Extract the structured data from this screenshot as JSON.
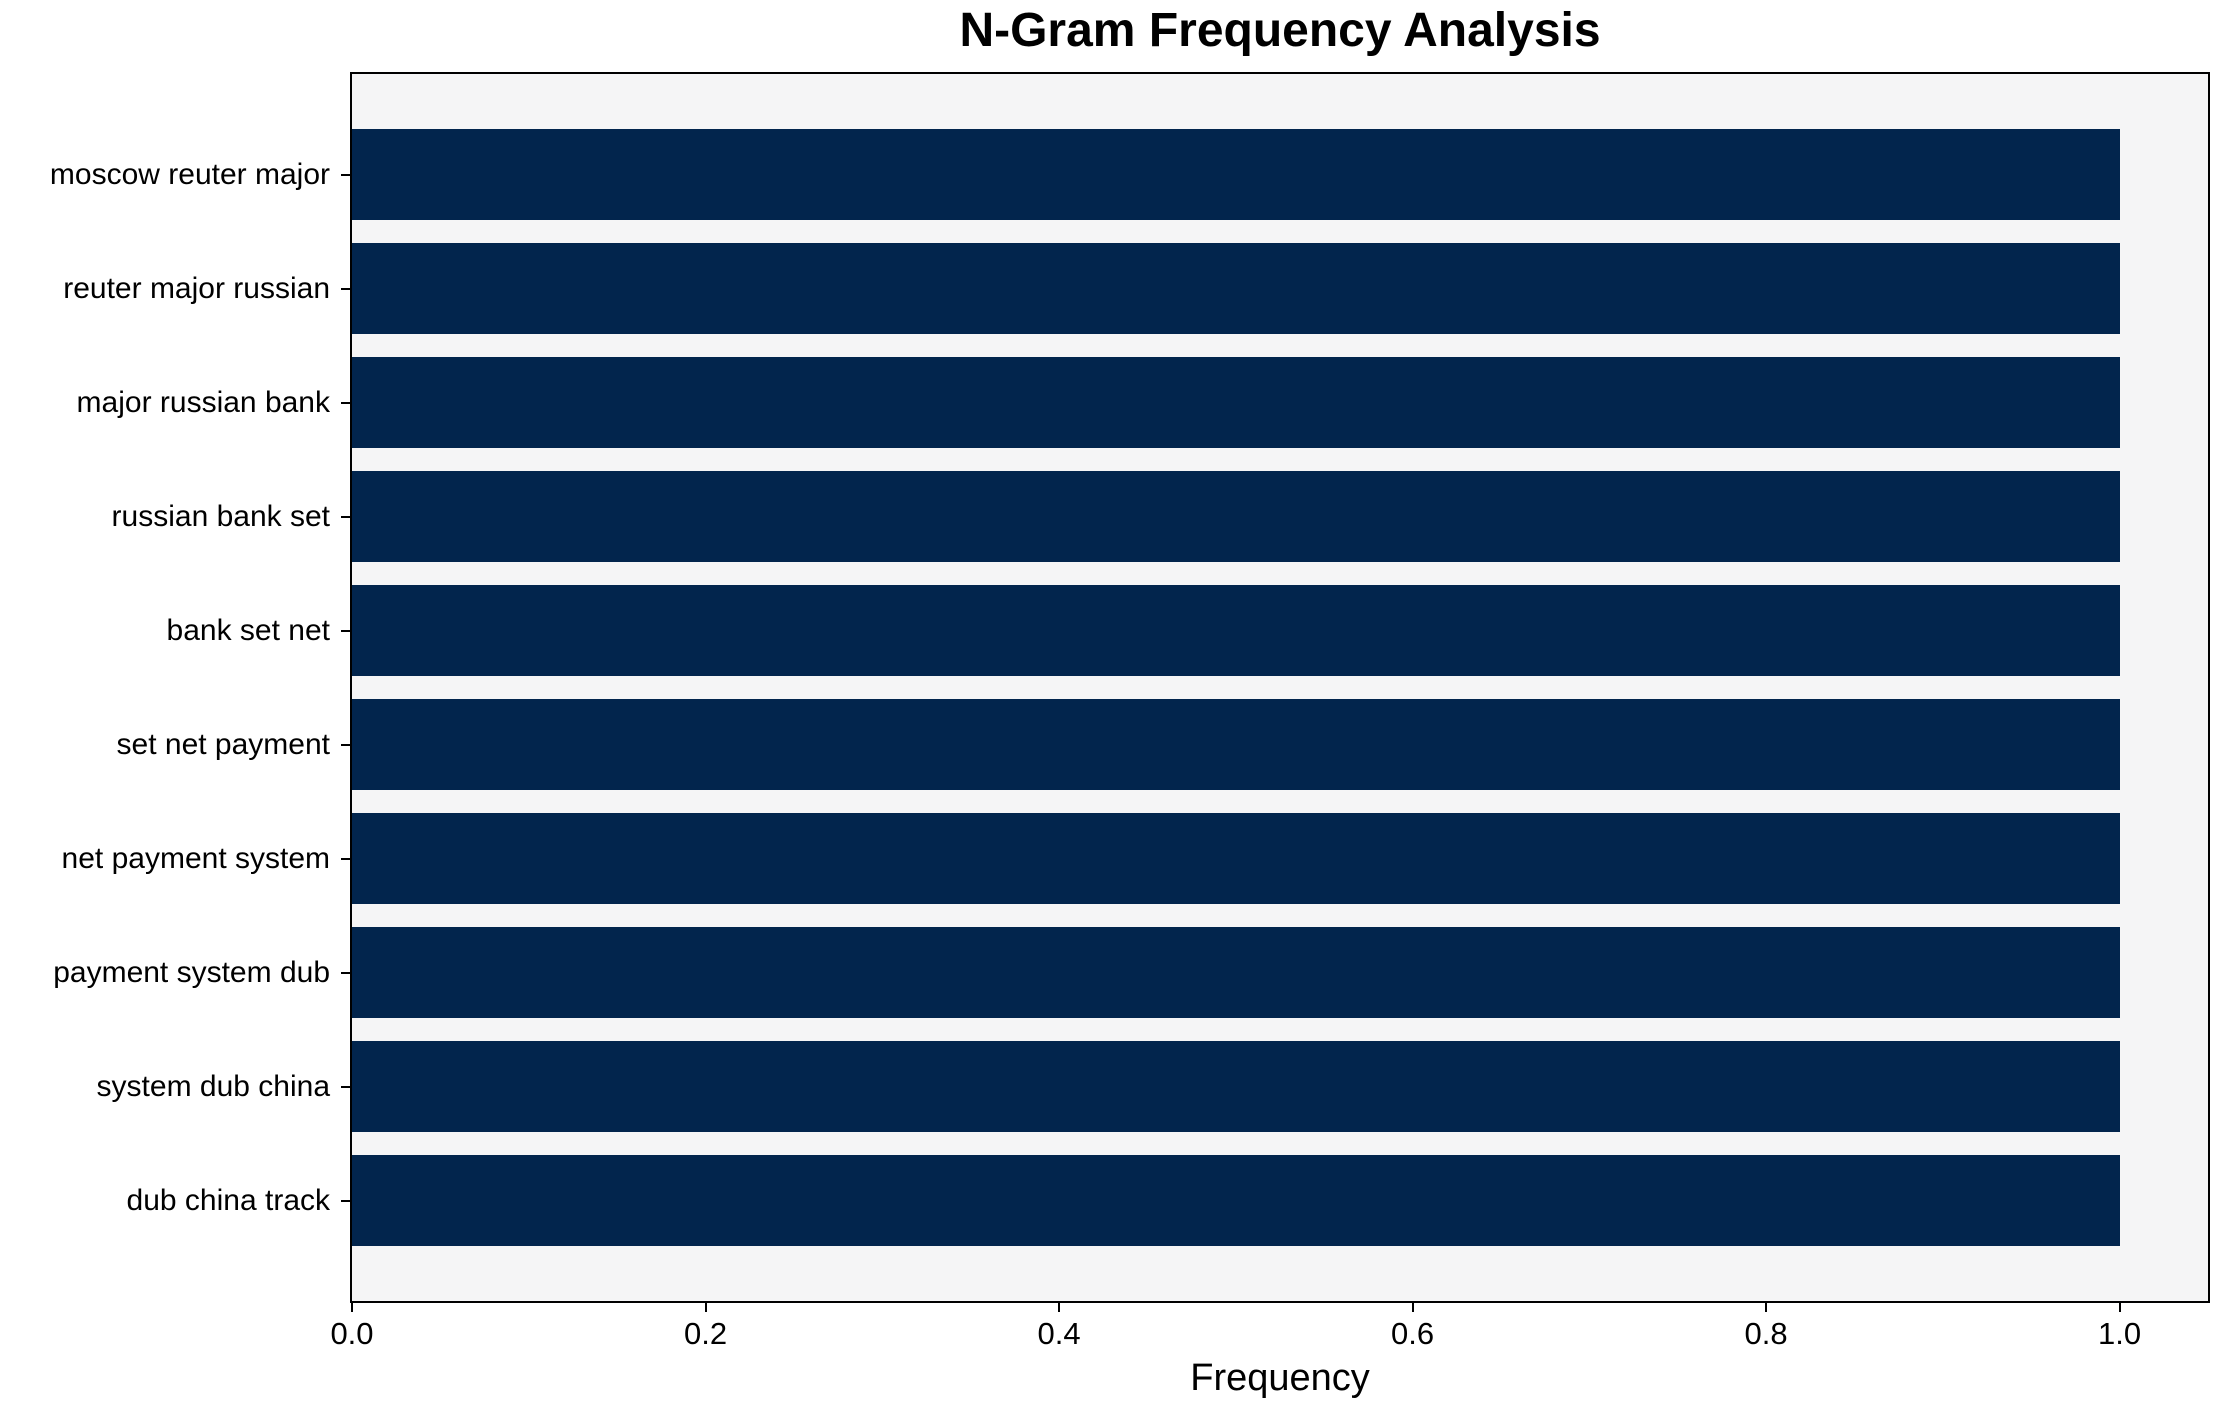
{
  "chart_data": {
    "type": "bar",
    "orientation": "horizontal",
    "title": "N-Gram Frequency Analysis",
    "xlabel": "Frequency",
    "ylabel": "",
    "categories": [
      "moscow reuter major",
      "reuter major russian",
      "major russian bank",
      "russian bank set",
      "bank set net",
      "set net payment",
      "net payment system",
      "payment system dub",
      "system dub china",
      "dub china track"
    ],
    "values": [
      1.0,
      1.0,
      1.0,
      1.0,
      1.0,
      1.0,
      1.0,
      1.0,
      1.0,
      1.0
    ],
    "xticks": [
      "0.0",
      "0.2",
      "0.4",
      "0.6",
      "0.8",
      "1.0"
    ],
    "xtick_values": [
      0.0,
      0.2,
      0.4,
      0.6,
      0.8,
      1.0
    ],
    "xlim": [
      0.0,
      1.05
    ],
    "grid": false,
    "legend_position": "none",
    "colors": {
      "bar": "#02254d",
      "plot_bg": "#f5f5f6",
      "figure_bg": "#ffffff",
      "spine": "#000000",
      "text": "#000000"
    }
  }
}
